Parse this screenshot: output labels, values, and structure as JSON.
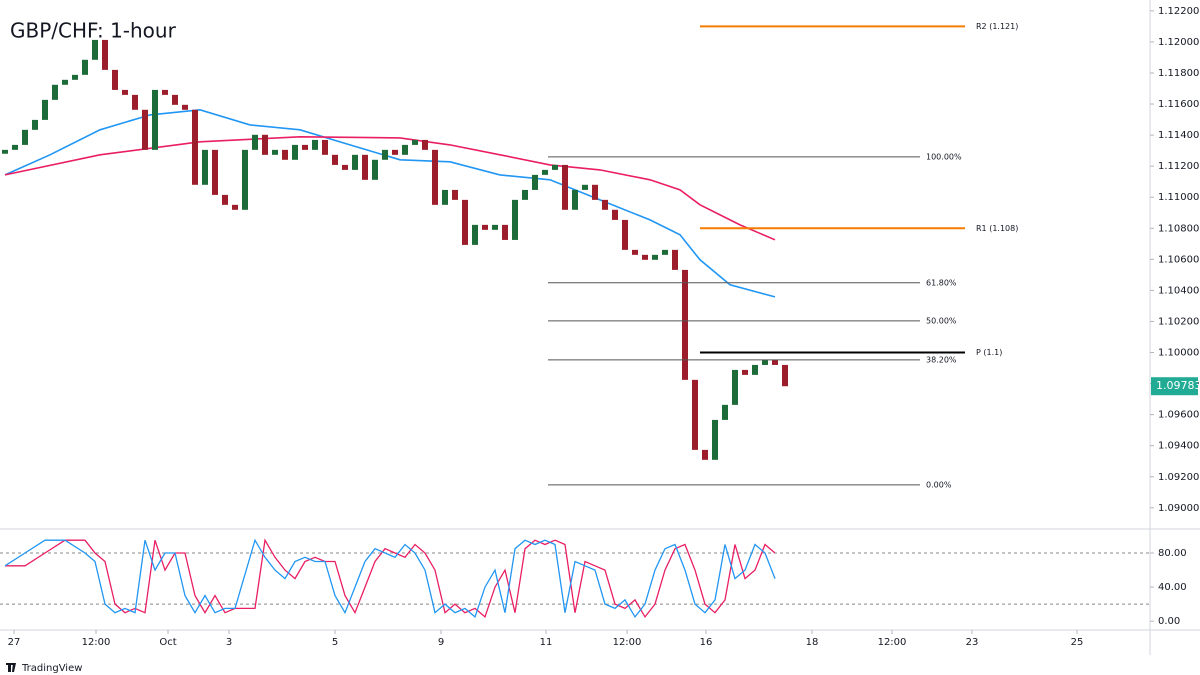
{
  "chart_data": [
    {
      "type": "candlestick",
      "title": "GBP/CHF: 1-hour",
      "up_color": "#1e6b3a",
      "down_color": "#9c1d2b",
      "xlim": [
        0,
        115
      ],
      "ylim": [
        1.0887,
        1.1227
      ],
      "yticks": [
        {
          "value": 1.122,
          "label": "1.12200"
        },
        {
          "value": 1.12,
          "label": "1.12000"
        },
        {
          "value": 1.118,
          "label": "1.11800"
        },
        {
          "value": 1.116,
          "label": "1.11600"
        },
        {
          "value": 1.114,
          "label": "1.11400"
        },
        {
          "value": 1.112,
          "label": "1.11200"
        },
        {
          "value": 1.11,
          "label": "1.11000"
        },
        {
          "value": 1.108,
          "label": "1.10800"
        },
        {
          "value": 1.106,
          "label": "1.10600"
        },
        {
          "value": 1.104,
          "label": "1.10400"
        },
        {
          "value": 1.102,
          "label": "1.10200"
        },
        {
          "value": 1.1,
          "label": "1.10000"
        },
        {
          "value": 1.098,
          "label": "1.09800"
        },
        {
          "value": 1.096,
          "label": "1.09600"
        },
        {
          "value": 1.094,
          "label": "1.09400"
        },
        {
          "value": 1.092,
          "label": "1.09200"
        },
        {
          "value": 1.09,
          "label": "1.09000"
        }
      ],
      "x": [
        0.5,
        1.5,
        2.5,
        3.5,
        4.5,
        5.5,
        6.5,
        7.5,
        8.5,
        9.5,
        10.5,
        11.5,
        12.5,
        13.5,
        14.5,
        15.5,
        16.5,
        17.5,
        18.5,
        19.5,
        20.5,
        21.5,
        22.5,
        23.5,
        24.5,
        25.5,
        26.5,
        27.5,
        28.5,
        29.5,
        30.5,
        31.5,
        32.5,
        33.5,
        34.5,
        35.5,
        36.5,
        37.5,
        38.5,
        39.5,
        40.5,
        41.5,
        42.5,
        43.5,
        44.5,
        45.5,
        46.5,
        47.5,
        48.5,
        49.5,
        50.5,
        51.5,
        52.5,
        53.5,
        54.5,
        55.5,
        56.5,
        57.5,
        58.5,
        59.5,
        60.5,
        61.5,
        62.5,
        63.5,
        64.5,
        65.5,
        66.5,
        67.5,
        68.5,
        69.5,
        70.5,
        71.5,
        72.5,
        73.5,
        74.5,
        75.5,
        76.5,
        77.5,
        78.5
      ],
      "open": [
        1.1128,
        1.11305,
        1.11337,
        1.11434,
        1.11498,
        1.11627,
        1.11724,
        1.11756,
        1.11788,
        1.11885,
        1.12013,
        1.1182,
        1.11691,
        1.11659,
        1.11563,
        1.11305,
        1.11691,
        1.11659,
        1.11595,
        1.11563,
        1.1108,
        1.11305,
        1.11015,
        1.10951,
        1.10919,
        1.11305,
        1.11402,
        1.11273,
        1.11305,
        1.11241,
        1.11337,
        1.11305,
        1.11369,
        1.11273,
        1.11208,
        1.11176,
        1.11273,
        1.11112,
        1.11241,
        1.11305,
        1.11273,
        1.11337,
        1.11369,
        1.11305,
        1.10951,
        1.11047,
        1.10983,
        1.10693,
        1.10822,
        1.1079,
        1.10822,
        1.10725,
        1.10983,
        1.11047,
        1.11144,
        1.11176,
        1.11208,
        1.10919,
        1.11047,
        1.1108,
        1.10983,
        1.10919,
        1.10854,
        1.10661,
        1.10629,
        1.10597,
        1.10629,
        1.10661,
        1.10532,
        1.09824,
        1.09373,
        1.09309,
        1.09566,
        1.09663,
        1.09888,
        1.09856,
        1.0992,
        1.09953,
        1.0992
      ],
      "close": [
        1.11305,
        1.11337,
        1.11434,
        1.11498,
        1.11627,
        1.11724,
        1.11756,
        1.11788,
        1.11885,
        1.12013,
        1.1182,
        1.11691,
        1.11659,
        1.11563,
        1.11305,
        1.11691,
        1.11659,
        1.11595,
        1.11563,
        1.1108,
        1.11305,
        1.11015,
        1.10951,
        1.10919,
        1.11305,
        1.11402,
        1.11273,
        1.11305,
        1.11241,
        1.11337,
        1.11305,
        1.11369,
        1.11273,
        1.11208,
        1.11176,
        1.11273,
        1.11112,
        1.11241,
        1.11305,
        1.11273,
        1.11337,
        1.11369,
        1.11305,
        1.10951,
        1.11047,
        1.10983,
        1.10693,
        1.10822,
        1.1079,
        1.10822,
        1.10725,
        1.10983,
        1.11047,
        1.11144,
        1.11176,
        1.11208,
        1.10919,
        1.11047,
        1.1108,
        1.10983,
        1.10919,
        1.10854,
        1.10661,
        1.10629,
        1.10597,
        1.10629,
        1.10661,
        1.10532,
        1.09824,
        1.09373,
        1.09309,
        1.09566,
        1.09663,
        1.09888,
        1.09856,
        1.0992,
        1.09953,
        1.0992,
        1.09783
      ],
      "series": [
        {
          "color": "#2196f3",
          "x": [
            0.5,
            5,
            10,
            15,
            20,
            25,
            30,
            35,
            40,
            45,
            50,
            55,
            60,
            65,
            68,
            70,
            73,
            77.5
          ],
          "values": [
            1.11144,
            1.11273,
            1.11434,
            1.1153,
            1.11563,
            1.11466,
            1.11434,
            1.11337,
            1.11241,
            1.11228,
            1.11144,
            1.11112,
            1.10983,
            1.10854,
            1.10758,
            1.10597,
            1.10436,
            1.10358
          ]
        },
        {
          "color": "#e91e63",
          "x": [
            0.5,
            10,
            20,
            30,
            40,
            45,
            50,
            55,
            60,
            65,
            68,
            70,
            74,
            77.5
          ],
          "values": [
            1.11144,
            1.11273,
            1.11357,
            1.11389,
            1.11382,
            1.11337,
            1.11273,
            1.11208,
            1.11176,
            1.11112,
            1.11047,
            1.10951,
            1.10822,
            1.10726
          ]
        }
      ],
      "fib_levels": {
        "color": "#555555",
        "xrange": [
          54.8,
          92
        ],
        "levels": [
          {
            "label": "100.00%",
            "value": 1.1126
          },
          {
            "label": "61.80%",
            "value": 1.10449
          },
          {
            "label": "50.00%",
            "value": 1.10204
          },
          {
            "label": "38.20%",
            "value": 1.09953
          },
          {
            "label": "0.00%",
            "value": 1.09148
          }
        ]
      },
      "pivots": {
        "xrange": [
          70,
          96.5
        ],
        "levels": [
          {
            "label": "R2 (1.121)",
            "value": 1.121,
            "color": "#f57c00"
          },
          {
            "label": "R1 (1.108)",
            "value": 1.108,
            "color": "#f57c00"
          },
          {
            "label": "P (1.1)",
            "value": 1.1,
            "color": "#000000"
          }
        ]
      },
      "last_price": 1.09783,
      "last_price_color": "#22ab94"
    },
    {
      "type": "line",
      "xlim": [
        0,
        115
      ],
      "ylim": [
        -8,
        107
      ],
      "yticks": [
        {
          "value": 80,
          "label": "80.00"
        },
        {
          "value": 40,
          "label": "40.00"
        },
        {
          "value": 0,
          "label": "0.00"
        }
      ],
      "bands": [
        80,
        20
      ],
      "xticks": [
        {
          "value": 1.4,
          "label": "27"
        },
        {
          "value": 9.6,
          "label": "12:00"
        },
        {
          "value": 16.8,
          "label": "Oct"
        },
        {
          "value": 22.9,
          "label": "3"
        },
        {
          "value": 33.5,
          "label": "5"
        },
        {
          "value": 44.1,
          "label": "9"
        },
        {
          "value": 54.6,
          "label": "11"
        },
        {
          "value": 62.7,
          "label": "12:00"
        },
        {
          "value": 70.6,
          "label": "16"
        },
        {
          "value": 81.2,
          "label": "18"
        },
        {
          "value": 89.2,
          "label": "12:00"
        },
        {
          "value": 97.2,
          "label": "23"
        },
        {
          "value": 107.7,
          "label": "25"
        }
      ],
      "x": [
        0.5,
        2.5,
        4.5,
        6.5,
        8.5,
        9.5,
        10.5,
        11.5,
        12.5,
        13.5,
        14.5,
        15.5,
        16.5,
        17.5,
        18.5,
        19.5,
        20.5,
        21.5,
        22.5,
        23.5,
        25.5,
        26.5,
        27.5,
        28.5,
        29.5,
        30.5,
        31.5,
        32.5,
        33.5,
        34.5,
        35.5,
        36.5,
        37.5,
        38.5,
        39.5,
        40.5,
        41.5,
        42.5,
        43.5,
        44.5,
        45.5,
        46.5,
        47.5,
        48.5,
        49.5,
        50.5,
        51.5,
        52.5,
        53.5,
        54.5,
        55.5,
        56.5,
        57.5,
        58.5,
        59.5,
        60.5,
        61.5,
        62.5,
        63.5,
        64.5,
        65.5,
        66.5,
        67.5,
        68.5,
        69.5,
        70.5,
        71.5,
        72.5,
        73.5,
        74.5,
        75.5,
        76.5,
        77.5
      ],
      "series": [
        {
          "color": "#e91e63",
          "values": [
            65,
            65,
            80,
            95,
            95,
            80,
            70,
            20,
            10,
            15,
            10,
            95,
            60,
            80,
            80,
            30,
            10,
            30,
            10,
            15,
            15,
            95,
            75,
            60,
            50,
            70,
            75,
            70,
            70,
            30,
            10,
            40,
            70,
            85,
            80,
            75,
            90,
            80,
            60,
            10,
            20,
            10,
            15,
            5,
            40,
            60,
            10,
            85,
            95,
            90,
            95,
            90,
            10,
            70,
            65,
            60,
            20,
            15,
            25,
            5,
            20,
            60,
            85,
            90,
            60,
            20,
            10,
            25,
            90,
            50,
            60,
            90,
            80
          ]
        },
        {
          "color": "#2196f3",
          "values": [
            65,
            80,
            95,
            95,
            80,
            70,
            20,
            10,
            15,
            10,
            95,
            60,
            80,
            80,
            30,
            10,
            30,
            10,
            15,
            15,
            95,
            75,
            60,
            50,
            70,
            75,
            70,
            70,
            30,
            10,
            40,
            70,
            85,
            80,
            75,
            90,
            80,
            60,
            10,
            20,
            10,
            15,
            5,
            40,
            60,
            10,
            85,
            95,
            90,
            95,
            90,
            10,
            70,
            65,
            60,
            20,
            15,
            25,
            5,
            20,
            60,
            85,
            90,
            60,
            20,
            10,
            25,
            90,
            50,
            60,
            90,
            80,
            50
          ]
        }
      ]
    }
  ],
  "footer": "TradingView"
}
